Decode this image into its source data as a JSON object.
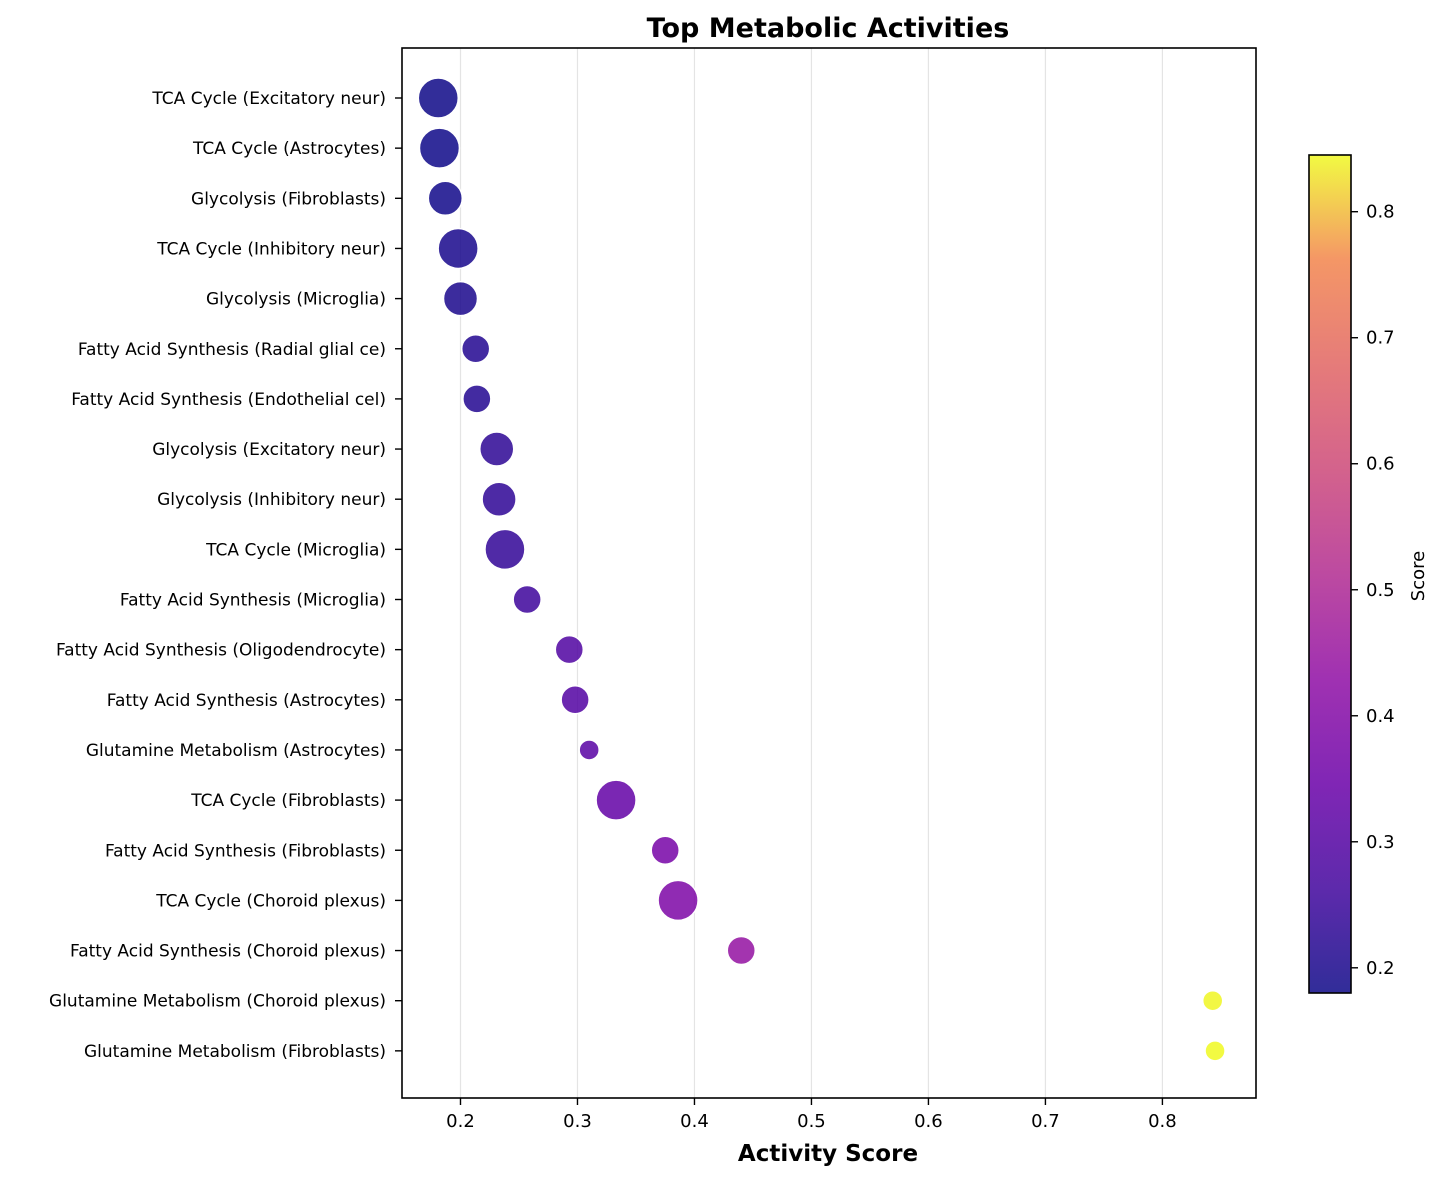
{
  "chart_data": {
    "type": "scatter",
    "title": "Top Metabolic Activities",
    "xlabel": "Activity Score",
    "ylabel": "",
    "xlim": [
      0.15,
      0.88
    ],
    "xticks": [
      0.2,
      0.3,
      0.4,
      0.5,
      0.6,
      0.7,
      0.8
    ],
    "grid": "x-only",
    "colormap": "plasma",
    "colorbar": {
      "label": "Score",
      "range": [
        0.18,
        0.845
      ],
      "ticks": [
        0.2,
        0.3,
        0.4,
        0.5,
        0.6,
        0.7,
        0.8
      ]
    },
    "points": [
      {
        "label": "TCA Cycle (Excitatory neur)",
        "x": 0.181,
        "size": 3
      },
      {
        "label": "TCA Cycle (Astrocytes)",
        "x": 0.182,
        "size": 3
      },
      {
        "label": "Glycolysis (Fibroblasts)",
        "x": 0.187,
        "size": 2
      },
      {
        "label": "TCA Cycle (Inhibitory neur)",
        "x": 0.198,
        "size": 3
      },
      {
        "label": "Glycolysis (Microglia)",
        "x": 0.2,
        "size": 2
      },
      {
        "label": "Fatty Acid Synthesis (Radial glial ce)",
        "x": 0.213,
        "size": 1
      },
      {
        "label": "Fatty Acid Synthesis (Endothelial cel)",
        "x": 0.214,
        "size": 1
      },
      {
        "label": "Glycolysis (Excitatory neur)",
        "x": 0.231,
        "size": 2
      },
      {
        "label": "Glycolysis (Inhibitory neur)",
        "x": 0.233,
        "size": 2
      },
      {
        "label": "TCA Cycle (Microglia)",
        "x": 0.238,
        "size": 3
      },
      {
        "label": "Fatty Acid Synthesis (Microglia)",
        "x": 0.257,
        "size": 1
      },
      {
        "label": "Fatty Acid Synthesis (Oligodendrocyte)",
        "x": 0.293,
        "size": 1
      },
      {
        "label": "Fatty Acid Synthesis (Astrocytes)",
        "x": 0.298,
        "size": 1
      },
      {
        "label": "Glutamine Metabolism (Astrocytes)",
        "x": 0.31,
        "size": 0
      },
      {
        "label": "TCA Cycle (Fibroblasts)",
        "x": 0.333,
        "size": 3
      },
      {
        "label": "Fatty Acid Synthesis (Fibroblasts)",
        "x": 0.375,
        "size": 1
      },
      {
        "label": "TCA Cycle (Choroid plexus)",
        "x": 0.386,
        "size": 3
      },
      {
        "label": "Fatty Acid Synthesis (Choroid plexus)",
        "x": 0.44,
        "size": 1
      },
      {
        "label": "Glutamine Metabolism (Choroid plexus)",
        "x": 0.843,
        "size": 0
      },
      {
        "label": "Glutamine Metabolism (Fibroblasts)",
        "x": 0.845,
        "size": 0
      }
    ]
  }
}
